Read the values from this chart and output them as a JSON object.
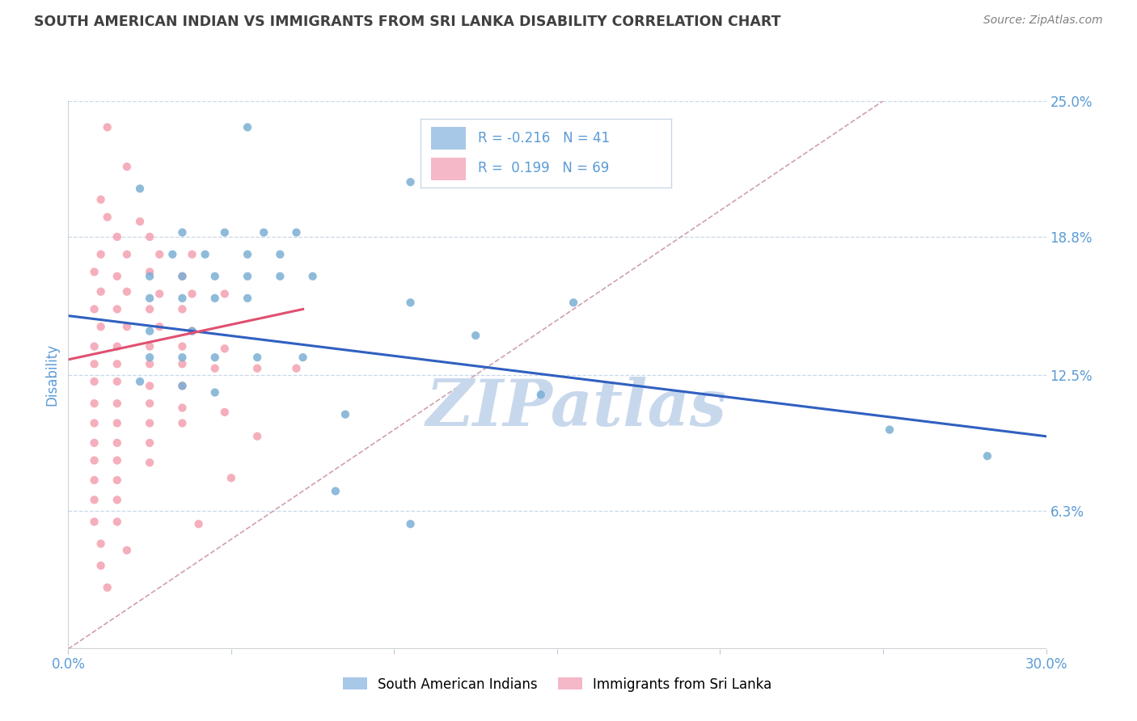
{
  "title": "SOUTH AMERICAN INDIAN VS IMMIGRANTS FROM SRI LANKA DISABILITY CORRELATION CHART",
  "source": "Source: ZipAtlas.com",
  "ylabel": "Disability",
  "xlim": [
    0.0,
    0.3
  ],
  "ylim": [
    0.0,
    0.25
  ],
  "yticks": [
    0.0,
    0.063,
    0.125,
    0.188,
    0.25
  ],
  "ytick_labels": [
    "",
    "6.3%",
    "12.5%",
    "18.8%",
    "25.0%"
  ],
  "xticks": [
    0.0,
    0.05,
    0.1,
    0.15,
    0.2,
    0.25,
    0.3
  ],
  "xtick_labels": [
    "0.0%",
    "",
    "",
    "",
    "",
    "",
    "30.0%"
  ],
  "blue_scatter": [
    [
      0.022,
      0.21
    ],
    [
      0.055,
      0.238
    ],
    [
      0.105,
      0.213
    ],
    [
      0.035,
      0.19
    ],
    [
      0.048,
      0.19
    ],
    [
      0.06,
      0.19
    ],
    [
      0.07,
      0.19
    ],
    [
      0.032,
      0.18
    ],
    [
      0.042,
      0.18
    ],
    [
      0.055,
      0.18
    ],
    [
      0.065,
      0.18
    ],
    [
      0.025,
      0.17
    ],
    [
      0.035,
      0.17
    ],
    [
      0.045,
      0.17
    ],
    [
      0.055,
      0.17
    ],
    [
      0.065,
      0.17
    ],
    [
      0.075,
      0.17
    ],
    [
      0.025,
      0.16
    ],
    [
      0.035,
      0.16
    ],
    [
      0.045,
      0.16
    ],
    [
      0.055,
      0.16
    ],
    [
      0.105,
      0.158
    ],
    [
      0.155,
      0.158
    ],
    [
      0.025,
      0.145
    ],
    [
      0.038,
      0.145
    ],
    [
      0.125,
      0.143
    ],
    [
      0.025,
      0.133
    ],
    [
      0.035,
      0.133
    ],
    [
      0.045,
      0.133
    ],
    [
      0.058,
      0.133
    ],
    [
      0.072,
      0.133
    ],
    [
      0.022,
      0.122
    ],
    [
      0.035,
      0.12
    ],
    [
      0.045,
      0.117
    ],
    [
      0.145,
      0.116
    ],
    [
      0.085,
      0.107
    ],
    [
      0.252,
      0.1
    ],
    [
      0.282,
      0.088
    ],
    [
      0.082,
      0.072
    ],
    [
      0.105,
      0.057
    ]
  ],
  "pink_scatter": [
    [
      0.012,
      0.238
    ],
    [
      0.018,
      0.22
    ],
    [
      0.01,
      0.205
    ],
    [
      0.012,
      0.197
    ],
    [
      0.022,
      0.195
    ],
    [
      0.015,
      0.188
    ],
    [
      0.025,
      0.188
    ],
    [
      0.01,
      0.18
    ],
    [
      0.018,
      0.18
    ],
    [
      0.028,
      0.18
    ],
    [
      0.038,
      0.18
    ],
    [
      0.008,
      0.172
    ],
    [
      0.015,
      0.17
    ],
    [
      0.025,
      0.172
    ],
    [
      0.035,
      0.17
    ],
    [
      0.01,
      0.163
    ],
    [
      0.018,
      0.163
    ],
    [
      0.028,
      0.162
    ],
    [
      0.038,
      0.162
    ],
    [
      0.048,
      0.162
    ],
    [
      0.008,
      0.155
    ],
    [
      0.015,
      0.155
    ],
    [
      0.025,
      0.155
    ],
    [
      0.035,
      0.155
    ],
    [
      0.01,
      0.147
    ],
    [
      0.018,
      0.147
    ],
    [
      0.028,
      0.147
    ],
    [
      0.038,
      0.145
    ],
    [
      0.008,
      0.138
    ],
    [
      0.015,
      0.138
    ],
    [
      0.025,
      0.138
    ],
    [
      0.035,
      0.138
    ],
    [
      0.048,
      0.137
    ],
    [
      0.008,
      0.13
    ],
    [
      0.015,
      0.13
    ],
    [
      0.025,
      0.13
    ],
    [
      0.035,
      0.13
    ],
    [
      0.045,
      0.128
    ],
    [
      0.058,
      0.128
    ],
    [
      0.008,
      0.122
    ],
    [
      0.015,
      0.122
    ],
    [
      0.025,
      0.12
    ],
    [
      0.035,
      0.12
    ],
    [
      0.008,
      0.112
    ],
    [
      0.015,
      0.112
    ],
    [
      0.025,
      0.112
    ],
    [
      0.035,
      0.11
    ],
    [
      0.008,
      0.103
    ],
    [
      0.015,
      0.103
    ],
    [
      0.025,
      0.103
    ],
    [
      0.035,
      0.103
    ],
    [
      0.008,
      0.094
    ],
    [
      0.015,
      0.094
    ],
    [
      0.025,
      0.094
    ],
    [
      0.008,
      0.086
    ],
    [
      0.015,
      0.086
    ],
    [
      0.025,
      0.085
    ],
    [
      0.008,
      0.077
    ],
    [
      0.015,
      0.077
    ],
    [
      0.008,
      0.068
    ],
    [
      0.015,
      0.068
    ],
    [
      0.008,
      0.058
    ],
    [
      0.015,
      0.058
    ],
    [
      0.01,
      0.048
    ],
    [
      0.018,
      0.045
    ],
    [
      0.01,
      0.038
    ],
    [
      0.012,
      0.028
    ],
    [
      0.048,
      0.108
    ],
    [
      0.07,
      0.128
    ],
    [
      0.058,
      0.097
    ],
    [
      0.05,
      0.078
    ],
    [
      0.04,
      0.057
    ]
  ],
  "blue_line_x": [
    0.0,
    0.3
  ],
  "blue_line_y": [
    0.152,
    0.097
  ],
  "pink_line_x": [
    0.0,
    0.072
  ],
  "pink_line_y": [
    0.132,
    0.155
  ],
  "diag_line_x": [
    0.0,
    0.25
  ],
  "diag_line_y": [
    0.0,
    0.25
  ],
  "blue_dot_color": "#7BAFD4",
  "pink_dot_color": "#F4A0B0",
  "blue_line_color": "#3060C0",
  "pink_line_color": "#E05070",
  "diag_line_color": "#D0A0B0",
  "legend_box_blue": "#A8C8E8",
  "legend_box_pink": "#F4B8C8",
  "tick_color": "#5B9BD5",
  "ylabel_color": "#5B9BD5",
  "title_color": "#404040",
  "source_color": "#808080",
  "watermark": "ZIPatlas",
  "watermark_color": "#C8D8EC",
  "grid_color": "#C8D8E8",
  "background": "#ffffff",
  "bottom_legend": [
    {
      "color": "#A8C8E8",
      "label": "South American Indians"
    },
    {
      "color": "#F4B8C8",
      "label": "Immigrants from Sri Lanka"
    }
  ]
}
